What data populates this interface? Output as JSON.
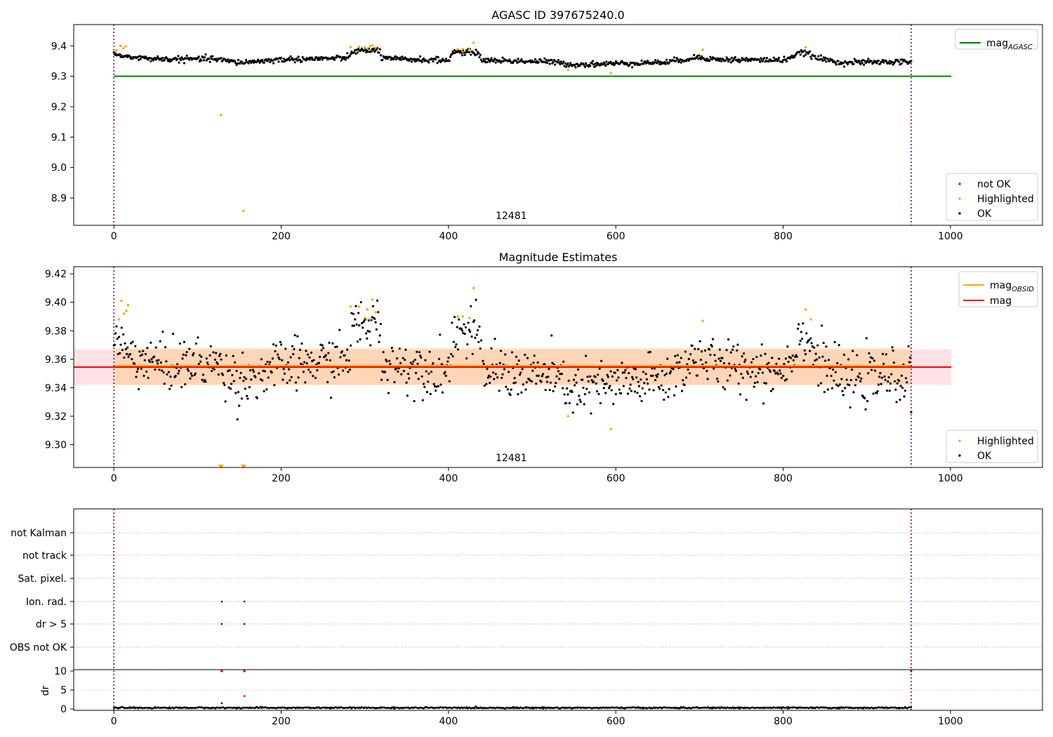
{
  "figure": {
    "top_title": "AGASC ID 397675240.0",
    "middle_title": "Magnitude Estimates"
  },
  "chart_data": [
    {
      "id": "panel1",
      "type": "scatter",
      "title": "AGASC ID 397675240.0",
      "xlim": [
        -48,
        1110
      ],
      "ylim": [
        8.81,
        9.47
      ],
      "xticks": [
        0,
        200,
        400,
        600,
        800,
        1000
      ],
      "yticks": [
        8.9,
        9.0,
        9.1,
        9.2,
        9.3,
        9.4
      ],
      "obsid_label": "12481",
      "obsid_label_x": 475,
      "obs_boundaries": [
        0,
        953
      ],
      "lines": [
        {
          "name": "mag_AGASC",
          "label_main": "mag",
          "label_sub": "AGASC",
          "color": "#008000",
          "x": [
            0,
            1001
          ],
          "y": [
            9.3,
            9.3
          ]
        }
      ],
      "legend_points": [
        {
          "label": "not OK",
          "color": "#ff0000"
        },
        {
          "label": "Highlighted",
          "color": "#ffa500"
        },
        {
          "label": "OK",
          "color": "#000000"
        }
      ],
      "highlighted_points": {
        "x": [
          3,
          8,
          11,
          14,
          128,
          155,
          283,
          293,
          300,
          303,
          306,
          309,
          313,
          411,
          417,
          425,
          430,
          543,
          594,
          704,
          827
        ],
        "y": [
          9.385,
          9.4,
          9.392,
          9.398,
          9.173,
          8.857,
          9.396,
          9.397,
          9.395,
          9.391,
          9.399,
          9.401,
          9.394,
          9.389,
          9.39,
          9.388,
          9.41,
          9.321,
          9.311,
          9.387,
          9.395
        ]
      },
      "series": [
        {
          "name": "OK",
          "color": "#000000",
          "mean_segments": [
            [
              0,
              9.375
            ],
            [
              20,
              9.362
            ],
            [
              60,
              9.356
            ],
            [
              120,
              9.357
            ],
            [
              150,
              9.345
            ],
            [
              200,
              9.355
            ],
            [
              280,
              9.36
            ],
            [
              285,
              9.382
            ],
            [
              318,
              9.386
            ],
            [
              320,
              9.358
            ],
            [
              400,
              9.352
            ],
            [
              405,
              9.38
            ],
            [
              435,
              9.378
            ],
            [
              440,
              9.353
            ],
            [
              520,
              9.348
            ],
            [
              550,
              9.338
            ],
            [
              600,
              9.342
            ],
            [
              660,
              9.346
            ],
            [
              700,
              9.363
            ],
            [
              720,
              9.355
            ],
            [
              800,
              9.353
            ],
            [
              825,
              9.38
            ],
            [
              840,
              9.36
            ],
            [
              870,
              9.345
            ],
            [
              953,
              9.348
            ]
          ],
          "n": 930,
          "noise": 0.009
        }
      ]
    },
    {
      "id": "panel2",
      "type": "scatter",
      "title": "Magnitude Estimates",
      "xlim": [
        -48,
        1110
      ],
      "ylim": [
        9.284,
        9.425
      ],
      "xticks": [
        0,
        200,
        400,
        600,
        800,
        1000
      ],
      "yticks": [
        9.3,
        9.32,
        9.34,
        9.36,
        9.38,
        9.4,
        9.42
      ],
      "obsid_label": "12481",
      "obsid_label_x": 475,
      "obs_boundaries": [
        0,
        953
      ],
      "bands": [
        {
          "name": "mag_band",
          "color": "#ffb6c1",
          "opacity": 0.4,
          "x": [
            -48,
            1001
          ],
          "y": [
            9.342,
            9.367
          ]
        },
        {
          "name": "mag_OBSID_band",
          "color": "#ffa500",
          "opacity": 0.2,
          "x": [
            0,
            953
          ],
          "y": [
            9.342,
            9.368
          ]
        }
      ],
      "lines": [
        {
          "name": "mag_OBSID",
          "label_main": "mag",
          "label_sub": "OBSID",
          "color": "#ffa500",
          "x": [
            0,
            953
          ],
          "y": [
            9.3555,
            9.3555
          ]
        },
        {
          "name": "mag",
          "label_main": "mag",
          "label_sub": "",
          "color": "#ff0000",
          "x": [
            -48,
            1001
          ],
          "y": [
            9.3545,
            9.3545
          ]
        }
      ],
      "legend_points": [
        {
          "label": "Highlighted",
          "color": "#ffa500"
        },
        {
          "label": "OK",
          "color": "#000000"
        }
      ],
      "highlighted_points": {
        "x": [
          6,
          9,
          12,
          15,
          17,
          283,
          293,
          300,
          303,
          306,
          309,
          313,
          411,
          417,
          425,
          430,
          543,
          594,
          704,
          827,
          833
        ],
        "y": [
          9.388,
          9.401,
          9.392,
          9.394,
          9.398,
          9.397,
          9.397,
          9.389,
          9.395,
          9.388,
          9.402,
          9.393,
          9.39,
          9.39,
          9.389,
          9.41,
          9.32,
          9.311,
          9.387,
          9.395,
          9.388
        ]
      },
      "offscale_points": {
        "x": [
          128,
          155
        ],
        "y": [
          9.2845,
          9.2845
        ],
        "color": "#ffa500",
        "marker": "down-triangle"
      }
    },
    {
      "id": "panel3",
      "type": "scatter",
      "title": "",
      "xlim": [
        -48,
        1110
      ],
      "xticks": [
        0,
        200,
        400,
        600,
        800,
        1000
      ],
      "obs_boundaries": [
        0,
        953
      ],
      "flag_rows": [
        "not Kalman",
        "not track",
        "Sat. pixel.",
        "Ion. rad.",
        "dr > 5",
        "OBS not OK"
      ],
      "flag_points": [
        {
          "row": "Ion. rad.",
          "x": [
            129,
            156
          ]
        },
        {
          "row": "dr > 5",
          "x": [
            129,
            156
          ]
        }
      ],
      "dr": {
        "ylabel": "dr",
        "ylim": [
          -0.5,
          10.5
        ],
        "yticks": [
          0,
          5,
          10
        ],
        "baseline_mean": 0.3,
        "baseline_noise": 0.15,
        "red_points": {
          "x": [
            129,
            156,
            953
          ],
          "y": [
            10,
            10,
            10
          ]
        },
        "extra_red_points": {
          "x": [
            156
          ],
          "y": [
            3.4
          ]
        },
        "extra_black_points": {
          "x": [
            129
          ],
          "y": [
            1.5
          ]
        }
      }
    }
  ]
}
